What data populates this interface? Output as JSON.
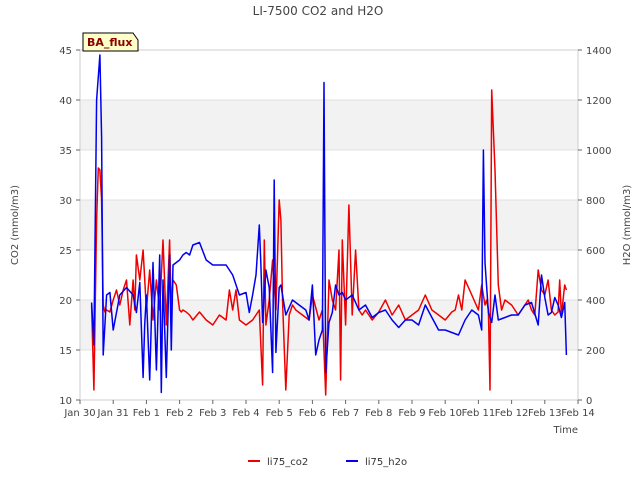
{
  "chart_data": {
    "type": "line",
    "title": "LI-7500 CO2 and H2O",
    "xlabel": "Time",
    "ylabel_left": "CO2 (mmol/m3)",
    "ylabel_right": "H2O (mmol/m3)",
    "badge": "BA_flux",
    "xlim": [
      0,
      15
    ],
    "ylim_left": [
      10,
      45
    ],
    "ylim_right": [
      0,
      1400
    ],
    "x_ticks": [
      {
        "x": 0,
        "label": "Jan 30"
      },
      {
        "x": 1,
        "label": "Jan 31"
      },
      {
        "x": 2,
        "label": "Feb 1"
      },
      {
        "x": 3,
        "label": "Feb 2"
      },
      {
        "x": 4,
        "label": "Feb 3"
      },
      {
        "x": 5,
        "label": "Feb 4"
      },
      {
        "x": 6,
        "label": "Feb 5"
      },
      {
        "x": 7,
        "label": "Feb 6"
      },
      {
        "x": 8,
        "label": "Feb 7"
      },
      {
        "x": 9,
        "label": "Feb 8"
      },
      {
        "x": 10,
        "label": "Feb 9"
      },
      {
        "x": 11,
        "label": "Feb 10"
      },
      {
        "x": 12,
        "label": "Feb 11"
      },
      {
        "x": 13,
        "label": "Feb 12"
      },
      {
        "x": 14,
        "label": "Feb 13"
      },
      {
        "x": 15,
        "label": "Feb 14"
      }
    ],
    "y_ticks_left": [
      "10",
      "15",
      "20",
      "25",
      "30",
      "35",
      "40",
      "45"
    ],
    "y_ticks_right": [
      "0",
      "200",
      "400",
      "600",
      "800",
      "1000",
      "1200",
      "1400"
    ],
    "series": [
      {
        "name": "li75_co2",
        "color": "#ee0000",
        "axis": "left",
        "x": [
          0.35,
          0.42,
          0.5,
          0.55,
          0.6,
          0.65,
          0.7,
          0.75,
          0.8,
          0.9,
          1.0,
          1.1,
          1.2,
          1.3,
          1.4,
          1.5,
          1.6,
          1.65,
          1.7,
          1.8,
          1.9,
          2.0,
          2.1,
          2.2,
          2.3,
          2.4,
          2.5,
          2.6,
          2.7,
          2.75,
          2.8,
          2.9,
          3.0,
          3.05,
          3.1,
          3.2,
          3.3,
          3.4,
          3.6,
          3.8,
          4.0,
          4.2,
          4.4,
          4.5,
          4.6,
          4.7,
          4.8,
          5.0,
          5.2,
          5.4,
          5.5,
          5.55,
          5.6,
          5.7,
          5.8,
          5.9,
          6.0,
          6.05,
          6.1,
          6.2,
          6.3,
          6.4,
          6.5,
          6.7,
          6.9,
          7.0,
          7.2,
          7.3,
          7.4,
          7.5,
          7.6,
          7.7,
          7.8,
          7.85,
          7.9,
          8.0,
          8.1,
          8.2,
          8.3,
          8.4,
          8.5,
          8.6,
          8.8,
          9.0,
          9.2,
          9.4,
          9.6,
          9.8,
          10.0,
          10.2,
          10.4,
          10.6,
          10.8,
          11.0,
          11.2,
          11.3,
          11.4,
          11.5,
          11.6,
          11.8,
          12.0,
          12.1,
          12.2,
          12.25,
          12.3,
          12.35,
          12.4,
          12.5,
          12.6,
          12.7,
          12.8,
          13.0,
          13.2,
          13.4,
          13.5,
          13.6,
          13.7,
          13.8,
          13.9,
          14.0,
          14.1,
          14.2,
          14.3,
          14.4,
          14.45,
          14.5,
          14.6,
          14.65
        ],
        "values": [
          19.5,
          11.0,
          28.0,
          33.2,
          33.0,
          30.0,
          19.5,
          18.8,
          19.0,
          18.8,
          20.0,
          21.0,
          19.5,
          21.0,
          22.0,
          17.5,
          22.0,
          19.0,
          24.5,
          22.0,
          25.0,
          19.0,
          23.0,
          18.0,
          22.0,
          19.0,
          26.0,
          17.5,
          26.0,
          19.0,
          22.0,
          21.5,
          19.0,
          18.8,
          19.0,
          18.8,
          18.5,
          18.0,
          18.8,
          18.0,
          17.5,
          18.5,
          18.0,
          21.0,
          19.0,
          21.0,
          18.0,
          17.5,
          18.0,
          19.0,
          11.5,
          26.0,
          17.5,
          20.0,
          24.0,
          19.0,
          30.0,
          28.0,
          20.0,
          11.0,
          18.5,
          19.5,
          19.0,
          18.5,
          18.0,
          20.5,
          18.0,
          19.0,
          10.5,
          22.0,
          20.0,
          19.0,
          25.0,
          12.0,
          26.0,
          17.5,
          29.5,
          18.5,
          25.0,
          19.0,
          18.5,
          19.0,
          18.0,
          18.8,
          20.0,
          18.5,
          19.5,
          18.0,
          18.5,
          19.0,
          20.5,
          19.0,
          18.5,
          18.0,
          18.8,
          19.0,
          20.5,
          19.0,
          22.0,
          20.5,
          19.0,
          21.5,
          19.5,
          20.0,
          19.0,
          11.0,
          41.0,
          33.0,
          21.5,
          19.0,
          20.0,
          19.5,
          18.5,
          19.5,
          20.0,
          19.0,
          18.5,
          23.0,
          21.0,
          20.5,
          22.0,
          19.0,
          18.5,
          18.8,
          22.0,
          18.5,
          21.5,
          21.0
        ]
      },
      {
        "name": "li75_h2o",
        "color": "#0000ee",
        "axis": "right",
        "x": [
          0.35,
          0.42,
          0.5,
          0.6,
          0.65,
          0.7,
          0.8,
          0.9,
          1.0,
          1.2,
          1.4,
          1.6,
          1.7,
          1.8,
          1.9,
          1.95,
          2.0,
          2.1,
          2.2,
          2.3,
          2.4,
          2.45,
          2.5,
          2.6,
          2.7,
          2.75,
          2.8,
          2.9,
          3.0,
          3.1,
          3.2,
          3.3,
          3.4,
          3.6,
          3.8,
          4.0,
          4.2,
          4.4,
          4.6,
          4.8,
          5.0,
          5.1,
          5.2,
          5.3,
          5.4,
          5.45,
          5.5,
          5.6,
          5.7,
          5.8,
          5.85,
          5.9,
          6.0,
          6.05,
          6.1,
          6.2,
          6.4,
          6.6,
          6.8,
          6.9,
          7.0,
          7.1,
          7.2,
          7.3,
          7.35,
          7.4,
          7.5,
          7.6,
          7.7,
          7.8,
          7.9,
          8.0,
          8.2,
          8.4,
          8.6,
          8.8,
          9.0,
          9.2,
          9.4,
          9.6,
          9.8,
          10.0,
          10.2,
          10.4,
          10.6,
          10.8,
          11.0,
          11.2,
          11.4,
          11.6,
          11.8,
          12.0,
          12.1,
          12.15,
          12.2,
          12.3,
          12.4,
          12.5,
          12.6,
          12.8,
          13.0,
          13.2,
          13.4,
          13.6,
          13.8,
          13.9,
          14.0,
          14.1,
          14.2,
          14.3,
          14.4,
          14.5,
          14.6,
          14.65
        ],
        "values": [
          390,
          220,
          1200,
          1380,
          1050,
          180,
          420,
          430,
          280,
          420,
          450,
          420,
          350,
          470,
          90,
          300,
          420,
          80,
          550,
          120,
          580,
          30,
          480,
          90,
          580,
          200,
          540,
          550,
          560,
          580,
          590,
          580,
          620,
          630,
          560,
          540,
          540,
          540,
          500,
          420,
          430,
          350,
          420,
          500,
          700,
          540,
          310,
          520,
          450,
          110,
          880,
          190,
          450,
          460,
          420,
          340,
          400,
          380,
          360,
          320,
          460,
          180,
          240,
          280,
          1270,
          110,
          310,
          350,
          460,
          420,
          430,
          400,
          420,
          360,
          380,
          330,
          350,
          360,
          320,
          290,
          320,
          320,
          300,
          380,
          330,
          280,
          280,
          270,
          260,
          320,
          360,
          340,
          280,
          1000,
          550,
          350,
          310,
          420,
          320,
          330,
          340,
          340,
          380,
          390,
          300,
          500,
          410,
          340,
          350,
          410,
          380,
          330,
          390,
          180
        ],
        "fill_down": false
      }
    ],
    "legend": {
      "position": "bottom-center",
      "entries": [
        "li75_co2",
        "li75_h2o"
      ]
    },
    "grid": "horizontal-bands"
  }
}
